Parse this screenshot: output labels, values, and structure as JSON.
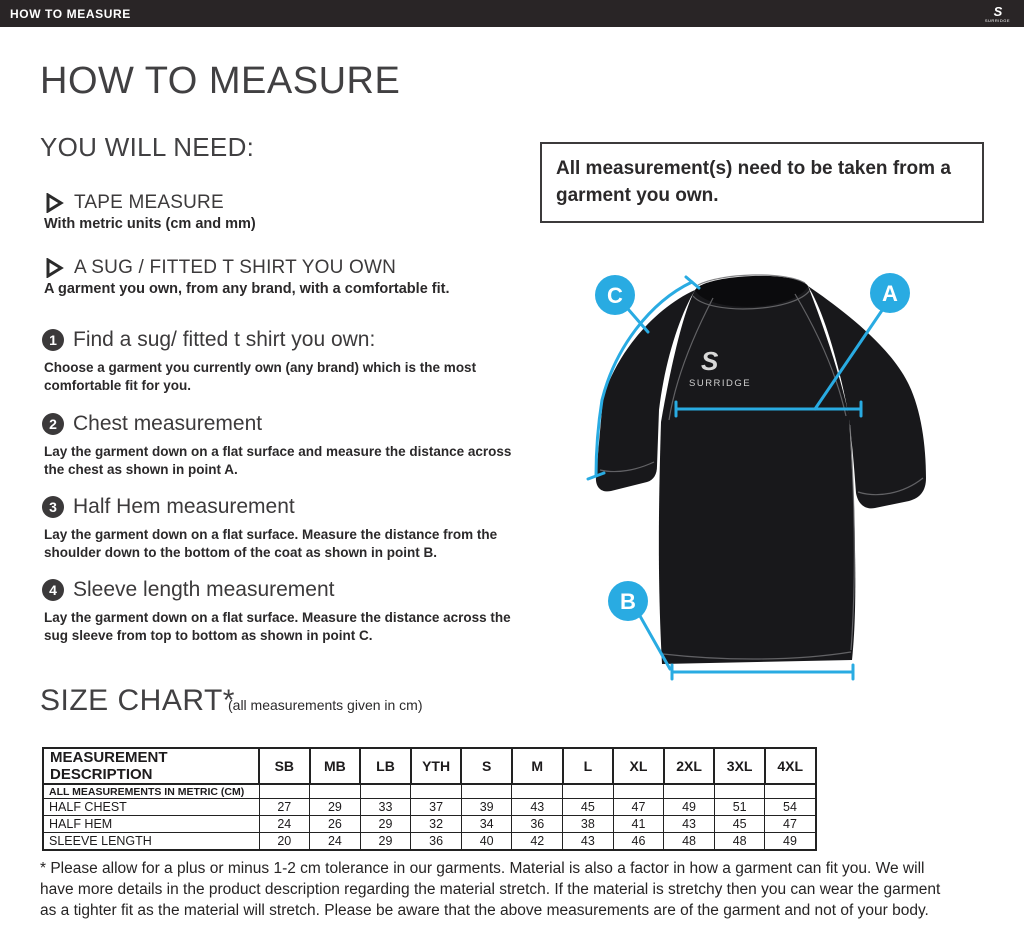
{
  "topbar": {
    "title": "HOW TO MEASURE",
    "brand": "SURRIDGE",
    "brand_mark": "S"
  },
  "page": {
    "title": "HOW TO MEASURE"
  },
  "you_will_need": {
    "heading": "YOU WILL NEED:",
    "items": [
      {
        "label": "TAPE MEASURE",
        "sub": "With metric units (cm and mm)"
      },
      {
        "label": "A SUG / FITTED T SHIRT YOU OWN",
        "sub": "A garment you own, from any brand, with a comfortable fit."
      }
    ]
  },
  "note_box": {
    "text": "All measurement(s) need to be taken from a garment you own."
  },
  "steps": [
    {
      "num": "1",
      "title": "Find a sug/ fitted t shirt you own:",
      "body": "Choose a garment you currently own (any brand) which is the most comfortable fit for you."
    },
    {
      "num": "2",
      "title": "Chest measurement",
      "body": "Lay the garment down on a flat surface and measure the distance across the chest as shown in point A."
    },
    {
      "num": "3",
      "title": "Half Hem measurement",
      "body": "Lay the garment down on a flat surface. Measure the distance from the shoulder down to the bottom of the coat as shown in point B."
    },
    {
      "num": "4",
      "title": "Sleeve length measurement",
      "body": "Lay the garment down on a flat surface. Measure the distance across the sug sleeve from top to bottom as shown in point C."
    }
  ],
  "diagram": {
    "labels": [
      "A",
      "B",
      "C"
    ],
    "shirt_logo_mark": "S",
    "shirt_logo": "SURRIDGE",
    "accent_color": "#29abe2"
  },
  "size_chart": {
    "heading": "SIZE CHART*",
    "subheading": "(all measurements given in cm)",
    "metric_note": "ALL MEASUREMENTS IN METRIC (CM)",
    "columns": [
      "MEASUREMENT DESCRIPTION",
      "SB",
      "MB",
      "LB",
      "YTH",
      "S",
      "M",
      "L",
      "XL",
      "2XL",
      "3XL",
      "4XL"
    ],
    "rows": [
      {
        "label": "HALF CHEST",
        "values": [
          27,
          29,
          33,
          37,
          39,
          43,
          45,
          47,
          49,
          51,
          54
        ]
      },
      {
        "label": "HALF HEM",
        "values": [
          24,
          26,
          29,
          32,
          34,
          36,
          38,
          41,
          43,
          45,
          47
        ]
      },
      {
        "label": "SLEEVE LENGTH",
        "values": [
          20,
          24,
          29,
          36,
          40,
          42,
          43,
          46,
          48,
          48,
          49
        ]
      }
    ]
  },
  "footnote": "* Please allow for a plus or minus 1-2 cm tolerance in our garments. Material is also a factor in how a garment can fit you. We will have more details in the product description regarding the material stretch.  If the material is stretchy then you can wear the garment as a tighter fit as the material will stretch.  Please be aware that the above measurements are of the garment and not of your body."
}
